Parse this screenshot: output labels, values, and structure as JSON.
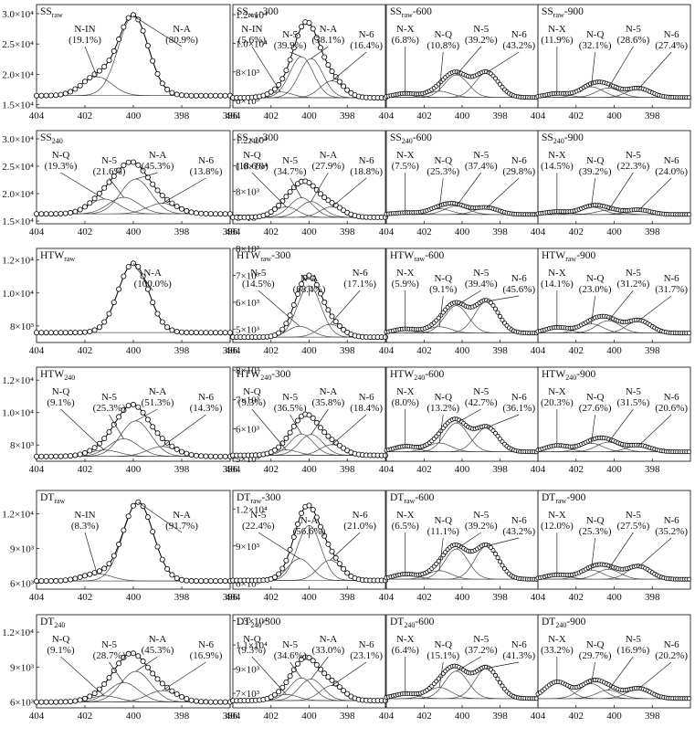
{
  "chart_data": [
    {
      "type": "line",
      "title": {
        "main": "SS",
        "sub": "raw"
      },
      "xlim": [
        404,
        396
      ],
      "xticks": [
        404,
        402,
        400,
        398,
        396
      ],
      "ylim": [
        14500,
        31500
      ],
      "yticks": [
        {
          "value": 15000,
          "label": "1.5×10⁴"
        },
        {
          "value": 20000,
          "label": "2.0×10⁴"
        },
        {
          "value": 25000,
          "label": "2.5×10⁴"
        },
        {
          "value": 30000,
          "label": "3.0×10⁴"
        }
      ],
      "baseline": 16500,
      "max": 29800,
      "peaks": [
        "N-IN",
        "N-A"
      ],
      "values": [
        19.1,
        80.9
      ],
      "value_labels": [
        "(19.1%)",
        "(80.9%)"
      ],
      "centers": [
        401.5,
        400.0
      ]
    },
    {
      "type": "line",
      "title": {
        "main": "SS",
        "sub": "raw",
        "suffix": "-300"
      },
      "xlim": [
        404,
        396
      ],
      "xticks": [
        404,
        402,
        400,
        398
      ],
      "ylim": [
        5500,
        12700
      ],
      "yticks": [
        {
          "value": 6000,
          "label": "6×10³"
        },
        {
          "value": 8000,
          "label": "8×10³"
        },
        {
          "value": 10000,
          "label": "1.0×10⁴"
        },
        {
          "value": 12000,
          "label": "1.2×10⁴"
        }
      ],
      "baseline": 6200,
      "max": 11500,
      "peaks": [
        "N-IN",
        "N-5",
        "N-A",
        "N-6"
      ],
      "values": [
        5.6,
        39.9,
        38.1,
        16.4
      ],
      "value_labels": [
        "(5.6%)",
        "(39.9%)",
        "(38.1%)",
        "(16.4%)"
      ],
      "centers": [
        401.5,
        400.4,
        399.9,
        398.8
      ]
    },
    {
      "type": "line",
      "title": {
        "main": "SS",
        "sub": "raw",
        "suffix": "-600"
      },
      "xlim": [
        404,
        396
      ],
      "xticks": [
        404,
        402,
        400,
        398
      ],
      "ylim": [
        0,
        10
      ],
      "baseline": 1,
      "max": 3.5,
      "peaks": [
        "N-X",
        "N-Q",
        "N-5",
        "N-6"
      ],
      "values": [
        6.8,
        10.8,
        39.2,
        43.2
      ],
      "value_labels": [
        "(6.8%)",
        "(10.8%)",
        "(39.2%)",
        "(43.2%)"
      ],
      "centers": [
        403.0,
        401.2,
        400.3,
        398.7
      ]
    },
    {
      "type": "line",
      "title": {
        "main": "SS",
        "sub": "raw",
        "suffix": "-900"
      },
      "xlim": [
        404,
        396
      ],
      "xticks": [
        404,
        402,
        400,
        398
      ],
      "ylim": [
        0,
        10
      ],
      "baseline": 1,
      "max": 2.5,
      "peaks": [
        "N-X",
        "N-Q",
        "N-5",
        "N-6"
      ],
      "values": [
        11.9,
        32.1,
        28.6,
        27.4
      ],
      "value_labels": [
        "(11.9%)",
        "(32.1%)",
        "(28.6%)",
        "(27.4%)"
      ],
      "centers": [
        403.0,
        401.2,
        400.3,
        398.7
      ]
    },
    {
      "type": "line",
      "title": {
        "main": "SS",
        "sub": "240"
      },
      "xlim": [
        404,
        396
      ],
      "xticks": [
        404,
        402,
        400,
        398,
        396
      ],
      "ylim": [
        14500,
        31500
      ],
      "yticks": [
        {
          "value": 15000,
          "label": "1.5×10⁴"
        },
        {
          "value": 20000,
          "label": "2.0×10⁴"
        },
        {
          "value": 25000,
          "label": "2.5×10⁴"
        },
        {
          "value": 30000,
          "label": "3.0×10⁴"
        }
      ],
      "baseline": 16300,
      "max": 25800,
      "peaks": [
        "N-Q",
        "N-5",
        "N-A",
        "N-6"
      ],
      "values": [
        19.3,
        21.6,
        45.3,
        13.8
      ],
      "value_labels": [
        "(19.3%)",
        "(21.6%)",
        "(45.3%)",
        "(13.8%)"
      ],
      "centers": [
        401.2,
        400.4,
        399.9,
        398.8
      ]
    },
    {
      "type": "line",
      "title": {
        "main": "SS",
        "sub": "240",
        "suffix": "-300"
      },
      "xlim": [
        404,
        396
      ],
      "xticks": [
        404,
        402,
        400,
        398
      ],
      "ylim": [
        5500,
        12700
      ],
      "yticks": [
        {
          "value": 6000,
          "label": "6×10³"
        },
        {
          "value": 8000,
          "label": "8×10³"
        },
        {
          "value": 10000,
          "label": "1.0×10⁴"
        },
        {
          "value": 12000,
          "label": "1.2×10⁴"
        }
      ],
      "baseline": 6000,
      "max": 8800,
      "peaks": [
        "N-Q",
        "N-5",
        "N-A",
        "N-6"
      ],
      "values": [
        18.6,
        34.7,
        27.9,
        18.8
      ],
      "value_labels": [
        "(18.6%)",
        "(34.7%)",
        "(27.9%)",
        "(18.8%)"
      ],
      "centers": [
        401.2,
        400.4,
        399.9,
        398.8
      ]
    },
    {
      "type": "line",
      "title": {
        "main": "SS",
        "sub": "240",
        "suffix": "-600"
      },
      "xlim": [
        404,
        396
      ],
      "xticks": [
        404,
        402,
        400,
        398
      ],
      "ylim": [
        0,
        10
      ],
      "baseline": 1,
      "max": 2.2,
      "peaks": [
        "N-X",
        "N-Q",
        "N-5",
        "N-6"
      ],
      "values": [
        7.5,
        25.3,
        37.4,
        29.8
      ],
      "value_labels": [
        "(7.5%)",
        "(25.3%)",
        "(37.4%)",
        "(29.8%)"
      ],
      "centers": [
        403.0,
        401.2,
        400.3,
        398.7
      ]
    },
    {
      "type": "line",
      "title": {
        "main": "SS",
        "sub": "240",
        "suffix": "-900"
      },
      "xlim": [
        404,
        396
      ],
      "xticks": [
        404,
        402,
        400,
        398
      ],
      "ylim": [
        0,
        10
      ],
      "baseline": 1,
      "max": 2.0,
      "peaks": [
        "N-X",
        "N-Q",
        "N-5",
        "N-6"
      ],
      "values": [
        14.5,
        39.2,
        22.3,
        24.0
      ],
      "value_labels": [
        "(14.5%)",
        "(39.2%)",
        "(22.3%)",
        "(24.0%)"
      ],
      "centers": [
        403.0,
        401.2,
        400.3,
        398.7
      ]
    },
    {
      "type": "line",
      "title": {
        "main": "HTW",
        "sub": "raw"
      },
      "xlim": [
        404,
        396
      ],
      "xticks": [
        404,
        402,
        400,
        398,
        396
      ],
      "ylim": [
        7000,
        12700
      ],
      "yticks": [
        {
          "value": 8000,
          "label": "8×10³"
        },
        {
          "value": 10000,
          "label": "1.0×10⁴"
        },
        {
          "value": 12000,
          "label": "1.2×10⁴"
        }
      ],
      "baseline": 7600,
      "max": 11800,
      "peaks": [
        "N-A"
      ],
      "values": [
        100.0
      ],
      "value_labels": [
        "(100.0%)"
      ],
      "centers": [
        400.0
      ]
    },
    {
      "type": "line",
      "title": {
        "main": "HTW",
        "sub": "raw",
        "suffix": "-300"
      },
      "xlim": [
        404,
        396
      ],
      "xticks": [
        404,
        402,
        400,
        398
      ],
      "ylim": [
        4500,
        8000
      ],
      "yticks": [
        {
          "value": 5000,
          "label": "5×10³"
        },
        {
          "value": 6000,
          "label": "6×10³"
        },
        {
          "value": 7000,
          "label": "7×10³"
        },
        {
          "value": 8000,
          "label": "8×10³"
        }
      ],
      "baseline": 4700,
      "max": 7000,
      "peaks": [
        "N-5",
        "N-A",
        "N-6"
      ],
      "values": [
        14.5,
        68.4,
        17.1
      ],
      "value_labels": [
        "(14.5%)",
        "(68.4%)",
        "(17.1%)"
      ],
      "centers": [
        400.5,
        400.0,
        398.9
      ]
    },
    {
      "type": "line",
      "title": {
        "main": "HTW",
        "sub": "raw",
        "suffix": "-600"
      },
      "xlim": [
        404,
        396
      ],
      "xticks": [
        404,
        402,
        400,
        398
      ],
      "ylim": [
        0,
        10
      ],
      "baseline": 1,
      "max": 4.5,
      "peaks": [
        "N-X",
        "N-Q",
        "N-5",
        "N-6"
      ],
      "values": [
        5.9,
        9.1,
        39.4,
        45.6
      ],
      "value_labels": [
        "(5.9%)",
        "(9.1%)",
        "(39.4%)",
        "(45.6%)"
      ],
      "centers": [
        403.0,
        401.2,
        400.3,
        398.7
      ]
    },
    {
      "type": "line",
      "title": {
        "main": "HTW",
        "sub": "raw",
        "suffix": "-900"
      },
      "xlim": [
        404,
        396
      ],
      "xticks": [
        404,
        402,
        400,
        398
      ],
      "ylim": [
        0,
        10
      ],
      "baseline": 1,
      "max": 2.8,
      "peaks": [
        "N-X",
        "N-Q",
        "N-5",
        "N-6"
      ],
      "values": [
        14.1,
        23.0,
        31.2,
        31.7
      ],
      "value_labels": [
        "(14.1%)",
        "(23.0%)",
        "(31.2%)",
        "(31.7%)"
      ],
      "centers": [
        403.0,
        401.2,
        400.3,
        398.7
      ]
    },
    {
      "type": "line",
      "title": {
        "main": "HTW",
        "sub": "240"
      },
      "xlim": [
        404,
        396
      ],
      "xticks": [
        404,
        402,
        400,
        398,
        396
      ],
      "ylim": [
        7000,
        12800
      ],
      "yticks": [
        {
          "value": 8000,
          "label": "8×10³"
        },
        {
          "value": 10000,
          "label": "1.0×10⁴"
        },
        {
          "value": 12000,
          "label": "1.2×10⁴"
        }
      ],
      "baseline": 7300,
      "max": 10500,
      "peaks": [
        "N-Q",
        "N-5",
        "N-A",
        "N-6"
      ],
      "values": [
        9.1,
        25.3,
        51.3,
        14.3
      ],
      "value_labels": [
        "(9.1%)",
        "(25.3%)",
        "(51.3%)",
        "(14.3%)"
      ],
      "centers": [
        401.2,
        400.4,
        399.9,
        398.8
      ]
    },
    {
      "type": "line",
      "title": {
        "main": "HTW",
        "sub": "240",
        "suffix": "-300"
      },
      "xlim": [
        404,
        396
      ],
      "xticks": [
        404,
        402,
        400,
        398
      ],
      "ylim": [
        4900,
        8100
      ],
      "yticks": [
        {
          "value": 5000,
          "label": "5×10³"
        },
        {
          "value": 6000,
          "label": "6×10³"
        },
        {
          "value": 7000,
          "label": "7×10³"
        },
        {
          "value": 8000,
          "label": "8×10³"
        }
      ],
      "baseline": 5100,
      "max": 6500,
      "peaks": [
        "N-Q",
        "N-5",
        "N-A",
        "N-6"
      ],
      "values": [
        9.3,
        36.5,
        35.8,
        18.4
      ],
      "value_labels": [
        "(9.3%)",
        "(36.5%)",
        "(35.8%)",
        "(18.4%)"
      ],
      "centers": [
        401.2,
        400.4,
        399.9,
        398.8
      ]
    },
    {
      "type": "line",
      "title": {
        "main": "HTW",
        "sub": "240",
        "suffix": "-600"
      },
      "xlim": [
        404,
        396
      ],
      "xticks": [
        404,
        402,
        400,
        398
      ],
      "ylim": [
        0,
        10
      ],
      "baseline": 1,
      "max": 4.5,
      "peaks": [
        "N-X",
        "N-Q",
        "N-5",
        "N-6"
      ],
      "values": [
        8.0,
        13.2,
        42.7,
        36.1
      ],
      "value_labels": [
        "(8.0%)",
        "(13.2%)",
        "(42.7%)",
        "(36.1%)"
      ],
      "centers": [
        403.0,
        401.2,
        400.3,
        398.7
      ]
    },
    {
      "type": "line",
      "title": {
        "main": "HTW",
        "sub": "240",
        "suffix": "-900"
      },
      "xlim": [
        404,
        396
      ],
      "xticks": [
        404,
        402,
        400,
        398
      ],
      "ylim": [
        0,
        10
      ],
      "baseline": 1,
      "max": 2.5,
      "peaks": [
        "N-X",
        "N-Q",
        "N-5",
        "N-6"
      ],
      "values": [
        20.3,
        27.6,
        31.5,
        20.6
      ],
      "value_labels": [
        "(20.3%)",
        "(27.6%)",
        "(31.5%)",
        "(20.6%)"
      ],
      "centers": [
        403.0,
        401.2,
        400.3,
        398.7
      ]
    },
    {
      "type": "line",
      "title": {
        "main": "DT",
        "sub": "raw"
      },
      "xlim": [
        404,
        396
      ],
      "xticks": [
        404,
        402,
        400,
        398,
        396
      ],
      "ylim": [
        5500,
        14000
      ],
      "yticks": [
        {
          "value": 6000,
          "label": "6×10³"
        },
        {
          "value": 9000,
          "label": "9×10³"
        },
        {
          "value": 12000,
          "label": "1.2×10⁴"
        }
      ],
      "baseline": 6200,
      "max": 13000,
      "peaks": [
        "N-IN",
        "N-A"
      ],
      "values": [
        8.3,
        91.7
      ],
      "value_labels": [
        "(8.3%)",
        "(91.7%)"
      ],
      "centers": [
        401.5,
        399.8
      ]
    },
    {
      "type": "line",
      "title": {
        "main": "DT",
        "sub": "raw",
        "suffix": "-300"
      },
      "xlim": [
        404,
        396
      ],
      "xticks": [
        404,
        402,
        400,
        398
      ],
      "ylim": [
        5500,
        13500
      ],
      "yticks": [
        {
          "value": 6000,
          "label": "6×10³"
        },
        {
          "value": 9000,
          "label": "9×10³"
        },
        {
          "value": 12000,
          "label": "1.2×10⁴"
        }
      ],
      "baseline": 6200,
      "max": 12300,
      "peaks": [
        "N-5",
        "N-A",
        "N-6"
      ],
      "values": [
        22.4,
        56.6,
        21.0
      ],
      "value_labels": [
        "(22.4%)",
        "(56.6%)",
        "(21.0%)"
      ],
      "centers": [
        400.5,
        400.0,
        398.9
      ]
    },
    {
      "type": "line",
      "title": {
        "main": "DT",
        "sub": "raw",
        "suffix": "-600"
      },
      "xlim": [
        404,
        396
      ],
      "xticks": [
        404,
        402,
        400,
        398
      ],
      "ylim": [
        0,
        10
      ],
      "baseline": 1,
      "max": 4.5,
      "peaks": [
        "N-X",
        "N-Q",
        "N-5",
        "N-6"
      ],
      "values": [
        6.5,
        11.1,
        39.2,
        43.2
      ],
      "value_labels": [
        "(6.5%)",
        "(11.1%)",
        "(39.2%)",
        "(43.2%)"
      ],
      "centers": [
        403.0,
        401.2,
        400.3,
        398.7
      ]
    },
    {
      "type": "line",
      "title": {
        "main": "DT",
        "sub": "raw",
        "suffix": "-900"
      },
      "xlim": [
        404,
        396
      ],
      "xticks": [
        404,
        402,
        400,
        398
      ],
      "ylim": [
        0,
        10
      ],
      "baseline": 1,
      "max": 2.5,
      "peaks": [
        "N-X",
        "N-Q",
        "N-5",
        "N-6"
      ],
      "values": [
        12.0,
        25.3,
        27.5,
        35.2
      ],
      "value_labels": [
        "(12.0%)",
        "(25.3%)",
        "(27.5%)",
        "(35.2%)"
      ],
      "centers": [
        403.0,
        401.2,
        400.3,
        398.7
      ]
    },
    {
      "type": "line",
      "title": {
        "main": "DT",
        "sub": "240"
      },
      "xlim": [
        404,
        396
      ],
      "xticks": [
        404,
        402,
        400,
        398,
        396
      ],
      "ylim": [
        5500,
        13500
      ],
      "yticks": [
        {
          "value": 6000,
          "label": "6×10³"
        },
        {
          "value": 9000,
          "label": "9×10³"
        },
        {
          "value": 12000,
          "label": "1.2×10⁴"
        }
      ],
      "baseline": 6000,
      "max": 10200,
      "peaks": [
        "N-Q",
        "N-5",
        "N-A",
        "N-6"
      ],
      "values": [
        9.1,
        28.7,
        45.3,
        16.9
      ],
      "value_labels": [
        "(9.1%)",
        "(28.7%)",
        "(45.3%)",
        "(16.9%)"
      ],
      "centers": [
        401.2,
        400.4,
        399.9,
        398.8
      ]
    },
    {
      "type": "line",
      "title": {
        "main": "DT",
        "sub": "240",
        "suffix": "-300"
      },
      "xlim": [
        404,
        396
      ],
      "xticks": [
        404,
        402,
        400,
        398
      ],
      "ylim": [
        5800,
        13500
      ],
      "yticks": [
        {
          "value": 7000,
          "label": "7×10³"
        },
        {
          "value": 9000,
          "label": "9×10³"
        },
        {
          "value": 11000,
          "label": "1.1×10⁴"
        },
        {
          "value": 13000,
          "label": "1.3×10⁴"
        }
      ],
      "baseline": 6400,
      "max": 10000,
      "peaks": [
        "N-Q",
        "N-5",
        "N-A",
        "N-6"
      ],
      "values": [
        9.3,
        34.6,
        33.0,
        23.1
      ],
      "value_labels": [
        "(9.3%)",
        "(34.6%)",
        "(33.0%)",
        "(23.1%)"
      ],
      "centers": [
        401.2,
        400.4,
        399.9,
        398.8
      ]
    },
    {
      "type": "line",
      "title": {
        "main": "DT",
        "sub": "240",
        "suffix": "-600"
      },
      "xlim": [
        404,
        396
      ],
      "xticks": [
        404,
        402,
        400,
        398
      ],
      "ylim": [
        0,
        10
      ],
      "baseline": 1,
      "max": 4.5,
      "peaks": [
        "N-X",
        "N-Q",
        "N-5",
        "N-6"
      ],
      "values": [
        6.4,
        15.1,
        37.2,
        41.3
      ],
      "value_labels": [
        "(6.4%)",
        "(15.1%)",
        "(37.2%)",
        "(41.3%)"
      ],
      "centers": [
        403.0,
        401.2,
        400.3,
        398.7
      ]
    },
    {
      "type": "line",
      "title": {
        "main": "DT",
        "sub": "240",
        "suffix": "-900"
      },
      "xlim": [
        404,
        396
      ],
      "xticks": [
        404,
        402,
        400,
        398
      ],
      "ylim": [
        0,
        10
      ],
      "baseline": 1,
      "max": 3.0,
      "peaks": [
        "N-X",
        "N-Q",
        "N-5",
        "N-6"
      ],
      "values": [
        33.2,
        29.7,
        16.9,
        20.2
      ],
      "value_labels": [
        "(33.2%)",
        "(29.7%)",
        "(16.9%)",
        "(20.2%)"
      ],
      "centers": [
        403.0,
        401.2,
        400.3,
        398.7
      ]
    }
  ]
}
